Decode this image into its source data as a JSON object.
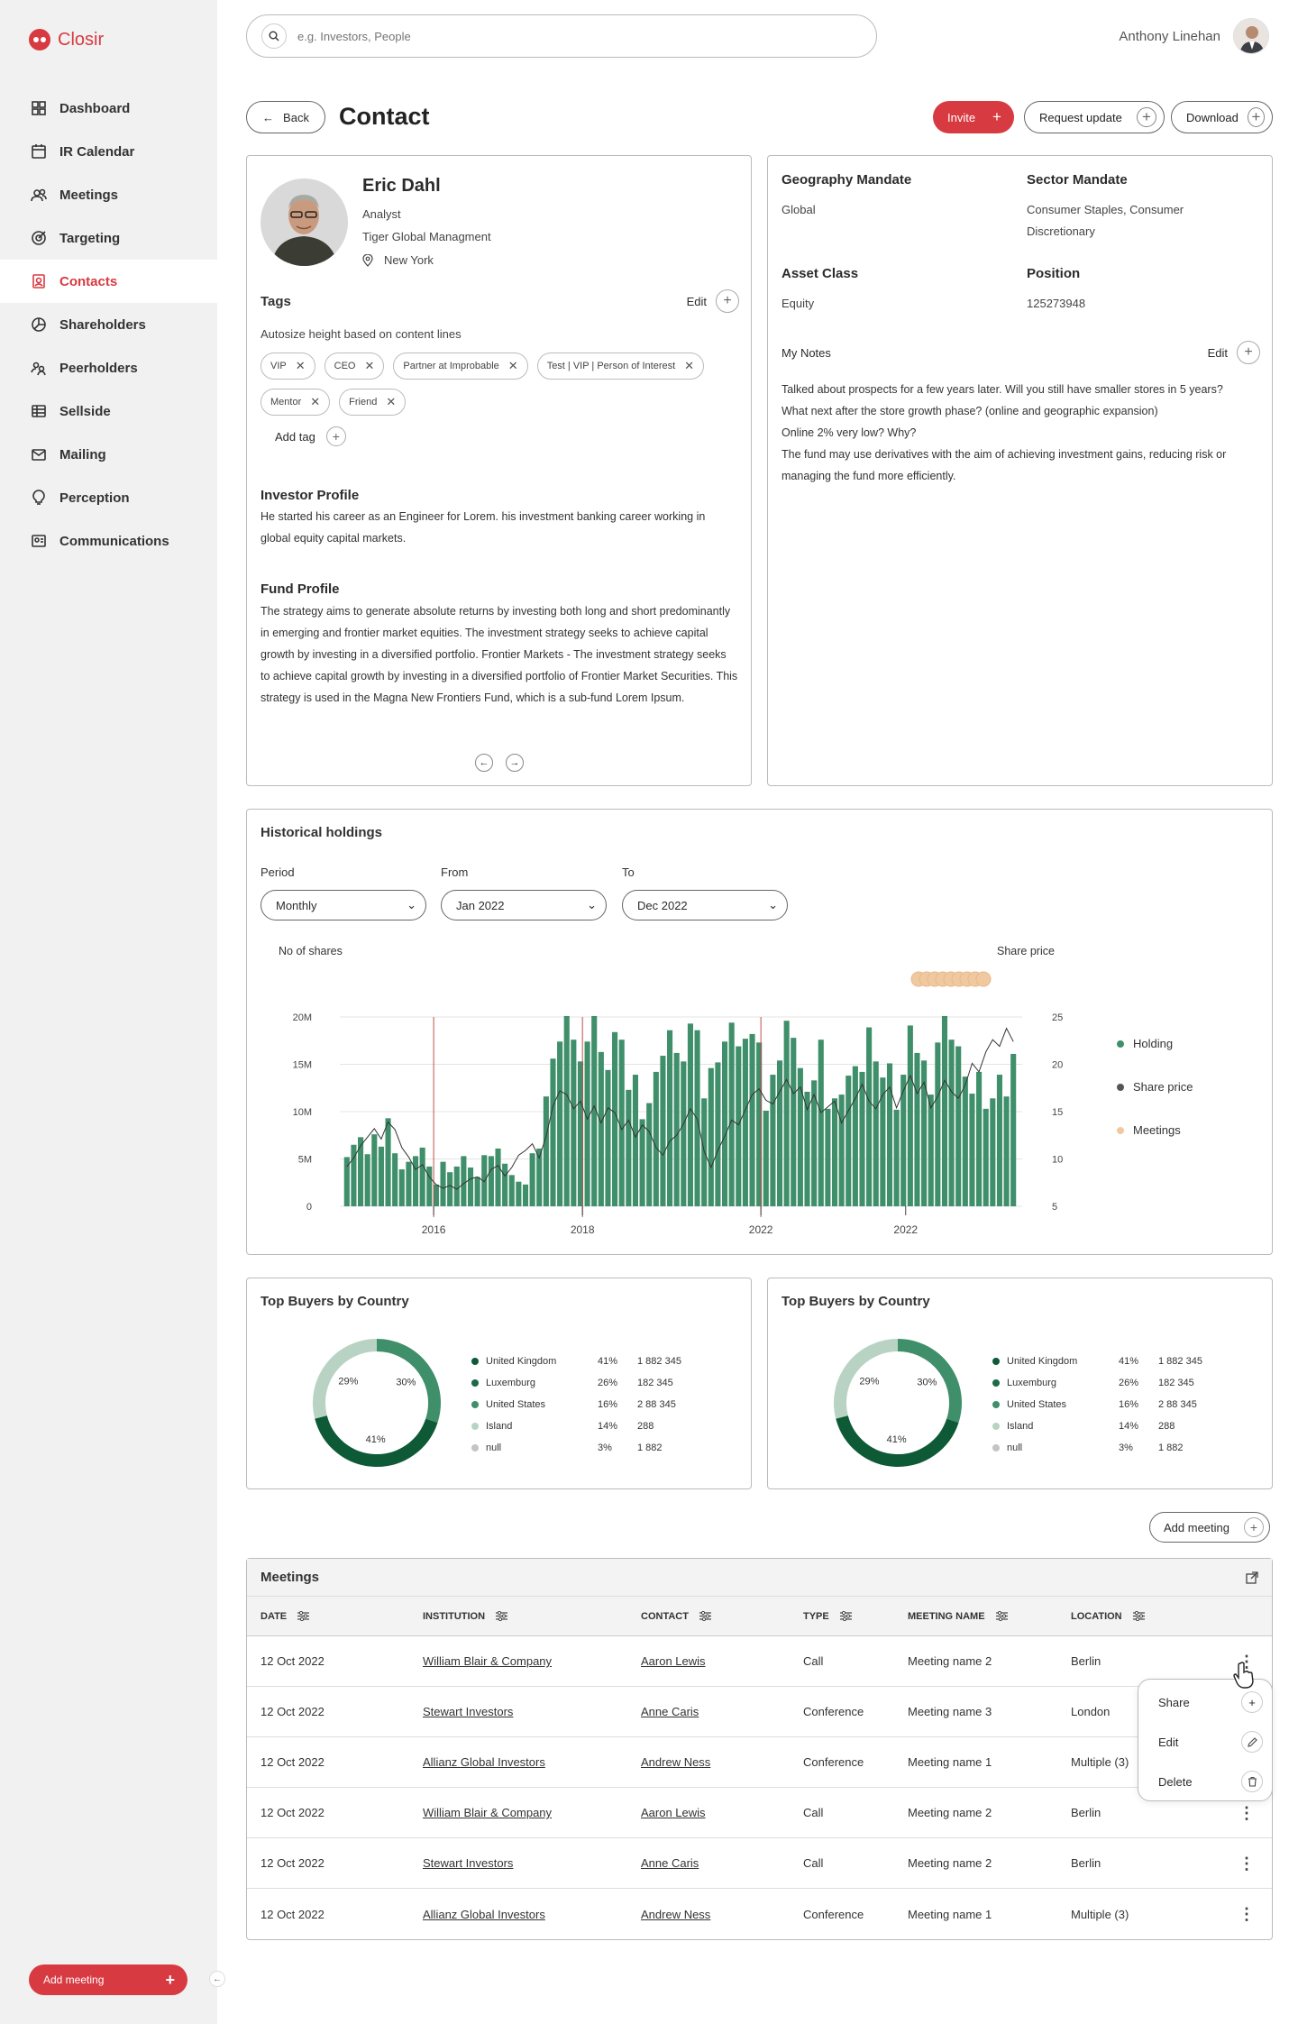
{
  "app": {
    "name": "Closir"
  },
  "nav": [
    {
      "label": "Dashboard",
      "icon": "grid-icon"
    },
    {
      "label": "IR Calendar",
      "icon": "calendar-icon"
    },
    {
      "label": "Meetings",
      "icon": "people-icon"
    },
    {
      "label": "Targeting",
      "icon": "target-icon"
    },
    {
      "label": "Contacts",
      "icon": "contact-icon",
      "active": true
    },
    {
      "label": "Shareholders",
      "icon": "pie-icon"
    },
    {
      "label": "Peerholders",
      "icon": "peers-icon"
    },
    {
      "label": "Sellside",
      "icon": "list-icon"
    },
    {
      "label": "Mailing",
      "icon": "mail-icon"
    },
    {
      "label": "Perception",
      "icon": "bulb-icon"
    },
    {
      "label": "Communications",
      "icon": "chat-icon"
    }
  ],
  "sidebar": {
    "add_meeting": "Add meeting"
  },
  "header": {
    "search_placeholder": "e.g. Investors, People",
    "user_name": "Anthony Linehan"
  },
  "page": {
    "back": "Back",
    "title": "Contact",
    "invite": "Invite",
    "request_update": "Request update",
    "download": "Download"
  },
  "contact": {
    "name": "Eric Dahl",
    "role": "Analyst",
    "company": "Tiger Global Managment",
    "location": "New York",
    "tags_title": "Tags",
    "edit": "Edit",
    "tags_hint": "Autosize height based on content lines",
    "tags": [
      "VIP",
      "CEO",
      "Partner at Improbable",
      "Test | VIP | Person of Interest",
      "Mentor",
      "Friend"
    ],
    "add_tag": "Add tag",
    "investor_profile_title": "Investor Profile",
    "investor_profile": "He started his career as an Engineer for Lorem. his investment banking career working in global equity capital markets.",
    "fund_profile_title": "Fund Profile",
    "fund_profile": "The strategy aims to generate absolute returns by investing both long and short predominantly in emerging and frontier market equities. The investment strategy seeks to achieve capital growth by investing in a diversified portfolio. Frontier Markets - The investment strategy seeks to achieve capital growth by investing in a diversified portfolio of Frontier Market Securities. This strategy is used in the Magna New Frontiers Fund, which is a sub-fund Lorem Ipsum."
  },
  "mandate": {
    "geography_label": "Geography Mandate",
    "geography": "Global",
    "sector_label": "Sector Mandate",
    "sector": "Consumer Staples, Consumer Discretionary",
    "asset_label": "Asset Class",
    "asset": "Equity",
    "position_label": "Position",
    "position": "125273948",
    "notes_label": "My Notes",
    "notes_edit": "Edit",
    "notes": [
      "Talked about prospects for a few years later. Will you still have smaller stores in 5 years?",
      "What next after the store growth phase? (online and geographic expansion)",
      "Online 2% very low? Why?",
      "The fund may use derivatives with the aim of achieving investment gains, reducing risk or managing the fund more efficiently."
    ]
  },
  "holdings": {
    "title": "Historical holdings",
    "period_label": "Period",
    "period": "Monthly",
    "from_label": "From",
    "from": "Jan 2022",
    "to_label": "To",
    "to": "Dec 2022",
    "left_axis_title": "No of shares",
    "right_axis_title": "Share price",
    "legend": [
      "Holding",
      "Share price",
      "Meetings"
    ]
  },
  "chart_data": {
    "type": "bar",
    "title": "Historical holdings",
    "ylabel": "No of shares",
    "y2label": "Share price",
    "ylim": [
      0,
      20000000
    ],
    "y2lim": [
      5,
      25
    ],
    "y_ticks": [
      "0",
      "5M",
      "10M",
      "15M",
      "20M"
    ],
    "y2_ticks": [
      "5",
      "10",
      "15",
      "20",
      "25"
    ],
    "x_ticks": [
      "2016",
      "2018",
      "2022",
      "2022"
    ],
    "grid": true,
    "legend_position": "right",
    "colors": {
      "holding": "#3f8f6b",
      "share_price": "#333333",
      "meetings": "#f0c9a0",
      "marker": "#c0504d"
    },
    "series": [
      {
        "name": "Holding",
        "values": [
          5.2,
          6.5,
          7.3,
          5.5,
          7.6,
          6.3,
          9.3,
          5.6,
          3.9,
          4.7,
          5.3,
          6.2,
          4.2,
          2.3,
          4.7,
          3.6,
          4.2,
          5.3,
          4.1,
          3.1,
          5.4,
          5.3,
          6.1,
          4.5,
          3.3,
          2.6,
          2.3,
          5.6,
          6.1,
          11.6,
          15.6,
          17.4,
          20.1,
          17.6,
          15.3,
          17.4,
          20.1,
          16.3,
          14.4,
          18.4,
          17.6,
          12.3,
          13.9,
          9.2,
          10.9,
          14.2,
          15.9,
          18.6,
          16.2,
          15.3,
          19.3,
          18.6,
          11.4,
          14.6,
          15.2,
          17.4,
          19.4,
          16.9,
          17.7,
          18.2,
          17.3,
          10.1,
          13.9,
          15.4,
          19.6,
          17.8,
          14.6,
          12.1,
          13.3,
          17.6,
          10.3,
          11.4,
          11.8,
          13.8,
          14.8,
          14.2,
          18.9,
          15.3,
          13.6,
          15.1,
          10.2,
          13.9,
          19.1,
          16.2,
          15.4,
          11.8,
          17.3,
          20.1,
          17.6,
          16.9,
          13.7,
          11.9,
          14.2,
          10.3,
          11.4,
          13.9,
          11.6,
          16.1
        ]
      },
      {
        "name": "Share price",
        "values": [
          9.2,
          10.1,
          11.4,
          12.3,
          13.2,
          12.1,
          13.9,
          13.1,
          11.2,
          10.2,
          8.9,
          9.4,
          8.1,
          7.3,
          6.9,
          7.2,
          6.8,
          7.4,
          7.9,
          8.1,
          7.6,
          8.9,
          9.3,
          8.2,
          9.1,
          10.4,
          10.9,
          11.6,
          10.1,
          12.4,
          15.6,
          17.2,
          16.8,
          15.3,
          16.1,
          14.2,
          15.6,
          13.8,
          15.4,
          14.9,
          13.1,
          14.1,
          12.3,
          13.6,
          12.9,
          11.2,
          10.4,
          11.9,
          12.5,
          13.7,
          15.3,
          14.2,
          10.8,
          9.1,
          10.9,
          12.4,
          14.1,
          13.6,
          15.2,
          16.8,
          17.4,
          16.2,
          15.8,
          17.1,
          18.4,
          16.9,
          17.6,
          15.2,
          16.8,
          14.9,
          15.5,
          16.1,
          13.8,
          15.1,
          16.4,
          17.9,
          16.1,
          15.3,
          16.8,
          17.6,
          15.4,
          17.2,
          18.8,
          16.9,
          18.1,
          15.4,
          16.6,
          18.3,
          17.1,
          16.4,
          17.8,
          20.1,
          19.2,
          21.3,
          22.6,
          21.9,
          23.8,
          22.4
        ]
      },
      {
        "name": "Meetings",
        "values": [
          1,
          1,
          1,
          1,
          1,
          1,
          1,
          1,
          1
        ]
      }
    ]
  },
  "buyers": [
    {
      "title": "Top Buyers by Country",
      "rows": [
        {
          "name": "United Kingdom",
          "pct": "41%",
          "value": "1 882 345",
          "color": "#0e5a37"
        },
        {
          "name": "Luxemburg",
          "pct": "26%",
          "value": "182 345",
          "color": "#1b6b45"
        },
        {
          "name": "United States",
          "pct": "16%",
          "value": "2 88 345",
          "color": "#3f8f6b"
        },
        {
          "name": "Island",
          "pct": "14%",
          "value": "288",
          "color": "#b8d3c4"
        },
        {
          "name": "null",
          "pct": "3%",
          "value": "1 882",
          "color": "#c4c4c4"
        }
      ],
      "slices": [
        {
          "label": "30%",
          "value": 30,
          "color": "#3f8f6b"
        },
        {
          "label": "41%",
          "value": 41,
          "color": "#0e5a37"
        },
        {
          "label": "29%",
          "value": 29,
          "color": "#b8d3c4"
        }
      ]
    },
    {
      "title": "Top Buyers by Country",
      "rows": [
        {
          "name": "United Kingdom",
          "pct": "41%",
          "value": "1 882 345",
          "color": "#0e5a37"
        },
        {
          "name": "Luxemburg",
          "pct": "26%",
          "value": "182 345",
          "color": "#1b6b45"
        },
        {
          "name": "United States",
          "pct": "16%",
          "value": "2 88 345",
          "color": "#3f8f6b"
        },
        {
          "name": "Island",
          "pct": "14%",
          "value": "288",
          "color": "#b8d3c4"
        },
        {
          "name": "null",
          "pct": "3%",
          "value": "1 882",
          "color": "#c4c4c4"
        }
      ],
      "slices": [
        {
          "label": "30%",
          "value": 30,
          "color": "#3f8f6b"
        },
        {
          "label": "41%",
          "value": 41,
          "color": "#0e5a37"
        },
        {
          "label": "29%",
          "value": 29,
          "color": "#b8d3c4"
        }
      ]
    }
  ],
  "meetings": {
    "add_meeting": "Add meeting",
    "title": "Meetings",
    "columns": [
      "DATE",
      "INSTITUTION",
      "CONTACT",
      "TYPE",
      "MEETING NAME",
      "LOCATION"
    ],
    "rows": [
      [
        "12 Oct 2022",
        "William Blair & Company",
        "Aaron Lewis",
        "Call",
        "Meeting name 2",
        "Berlin"
      ],
      [
        "12 Oct 2022",
        "Stewart Investors",
        "Anne Caris",
        "Conference",
        "Meeting name 3",
        "London"
      ],
      [
        "12 Oct 2022",
        "Allianz Global Investors",
        "Andrew Ness",
        "Conference",
        "Meeting name 1",
        "Multiple (3)"
      ],
      [
        "12 Oct 2022",
        "William Blair & Company",
        "Aaron Lewis",
        "Call",
        "Meeting name 2",
        "Berlin"
      ],
      [
        "12 Oct 2022",
        "Stewart Investors",
        "Anne Caris",
        "Call",
        "Meeting name 2",
        "Berlin"
      ],
      [
        "12 Oct 2022",
        "Allianz Global Investors",
        "Andrew Ness",
        "Conference",
        "Meeting name 1",
        "Multiple (3)"
      ]
    ],
    "menu": [
      "Share",
      "Edit",
      "Delete"
    ]
  },
  "colors": {
    "accent": "#d83a41",
    "green": "#3f8f6b"
  }
}
